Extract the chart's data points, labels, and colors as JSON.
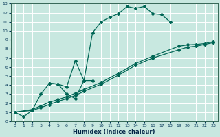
{
  "xlabel": "Humidex (Indice chaleur)",
  "xlim": [
    -0.5,
    23.5
  ],
  "ylim": [
    0,
    13
  ],
  "xticks": [
    0,
    1,
    2,
    3,
    4,
    5,
    6,
    7,
    8,
    9,
    10,
    11,
    12,
    13,
    14,
    15,
    16,
    17,
    18,
    19,
    20,
    21,
    22,
    23
  ],
  "yticks": [
    0,
    1,
    2,
    3,
    4,
    5,
    6,
    7,
    8,
    9,
    10,
    11,
    12,
    13
  ],
  "bg_color": "#c8e8e0",
  "line_color": "#006655",
  "grid_color": "#ffffff",
  "line1_x": [
    0,
    1,
    2,
    3,
    4,
    5,
    6,
    7,
    8,
    9,
    10,
    11,
    12,
    13,
    14,
    15,
    16,
    17,
    18
  ],
  "line1_y": [
    1,
    0.5,
    1.2,
    3.0,
    4.2,
    4.1,
    3.0,
    2.5,
    4.5,
    9.8,
    11.0,
    11.5,
    11.9,
    12.7,
    12.5,
    12.7,
    11.9,
    11.8,
    11.0
  ],
  "line2_x": [
    4,
    5,
    6,
    7,
    8,
    9
  ],
  "line2_y": [
    4.2,
    4.1,
    3.8,
    6.7,
    4.5,
    4.5
  ],
  "line3_x": [
    0,
    2,
    3,
    4,
    5,
    6,
    7,
    8,
    10,
    12,
    14,
    16,
    19,
    20,
    21,
    22,
    23
  ],
  "line3_y": [
    1,
    1.3,
    1.7,
    2.1,
    2.4,
    2.7,
    3.1,
    3.5,
    4.3,
    5.3,
    6.4,
    7.2,
    8.3,
    8.45,
    8.5,
    8.6,
    8.8
  ],
  "line4_x": [
    0,
    2,
    3,
    4,
    5,
    6,
    7,
    8,
    10,
    12,
    14,
    16,
    19,
    20,
    21,
    22,
    23
  ],
  "line4_y": [
    1,
    1.2,
    1.5,
    1.85,
    2.2,
    2.5,
    2.85,
    3.3,
    4.1,
    5.1,
    6.2,
    7.0,
    7.9,
    8.2,
    8.3,
    8.5,
    8.7
  ]
}
